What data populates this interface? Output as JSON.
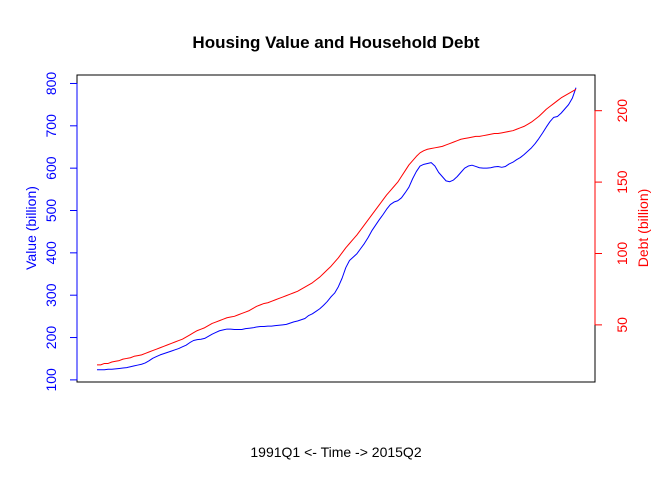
{
  "chart_data": {
    "type": "line",
    "title": "Housing Value and Household Debt",
    "xlabel": "1991Q1 <- Time -> 2015Q2",
    "ylabel_left": "Value (billion)",
    "ylabel_right": "Debt (billion)",
    "ylim_left": [
      95,
      820
    ],
    "ylim_right": [
      10,
      225
    ],
    "yticks_left": [
      "100",
      "200",
      "300",
      "400",
      "500",
      "600",
      "700",
      "800"
    ],
    "yticks_right": [
      "50",
      "100",
      "150",
      "200"
    ],
    "grid": false,
    "legend": "none",
    "colors": {
      "value": "#0000ff",
      "debt": "#ff0000"
    },
    "series": [
      {
        "axis": "left",
        "values": [
          124,
          124,
          124,
          125,
          125,
          126,
          127,
          128,
          129,
          131,
          133,
          135,
          137,
          140,
          145,
          151,
          155,
          159,
          162,
          165,
          168,
          171,
          174,
          178,
          182,
          188,
          193,
          195,
          196,
          198,
          203,
          208,
          212,
          216,
          218,
          220,
          220,
          219,
          219,
          219,
          221,
          222,
          223,
          225,
          226,
          226,
          227,
          227,
          228,
          229,
          230,
          231,
          234,
          237,
          239,
          242,
          245,
          252,
          256,
          262,
          268,
          276,
          285,
          296,
          305,
          320,
          340,
          365,
          382,
          390,
          398,
          410,
          422,
          436,
          452,
          465,
          478,
          490,
          503,
          514,
          520,
          523,
          530,
          542,
          555,
          575,
          592,
          605,
          609,
          611,
          613,
          605,
          590,
          580,
          570,
          568,
          572,
          580,
          590,
          600,
          605,
          607,
          604,
          601,
          600,
          600,
          601,
          603,
          604,
          602,
          604,
          610,
          614,
          620,
          625,
          632,
          640,
          648,
          658,
          670,
          683,
          697,
          710,
          720,
          722,
          730,
          740,
          750,
          765,
          790
        ]
      },
      {
        "axis": "right",
        "values": [
          22,
          22,
          23,
          23,
          24,
          24.5,
          25,
          26,
          26.5,
          27,
          28,
          28.5,
          29,
          30,
          31,
          32,
          33,
          34,
          35,
          36,
          37,
          38,
          39,
          40,
          41.5,
          43,
          44.5,
          46,
          47,
          48,
          49.5,
          51,
          52,
          53,
          54,
          55,
          55.5,
          56,
          57,
          58,
          59,
          60,
          61.5,
          63,
          64,
          65,
          65.5,
          66.5,
          67.5,
          68.5,
          69.5,
          70.5,
          71.5,
          72.5,
          73.5,
          75,
          76.5,
          78,
          79.5,
          81.5,
          83.5,
          86,
          88.5,
          91,
          94,
          97,
          100.5,
          104,
          107,
          110,
          113,
          116.5,
          120,
          123.5,
          127,
          130.5,
          134,
          137.5,
          141,
          144,
          147,
          150,
          154,
          158,
          162,
          165,
          168,
          170.5,
          172,
          173,
          173.5,
          174,
          174.5,
          175,
          176,
          177,
          178,
          179,
          180,
          180.5,
          181,
          181.5,
          182,
          182,
          182.5,
          183,
          183.5,
          184,
          184,
          184.5,
          185,
          185.5,
          186,
          187,
          188,
          189,
          190.5,
          192,
          194,
          196,
          198.5,
          201,
          203,
          205,
          207,
          209,
          210.5,
          212,
          213.5,
          215
        ]
      }
    ]
  }
}
